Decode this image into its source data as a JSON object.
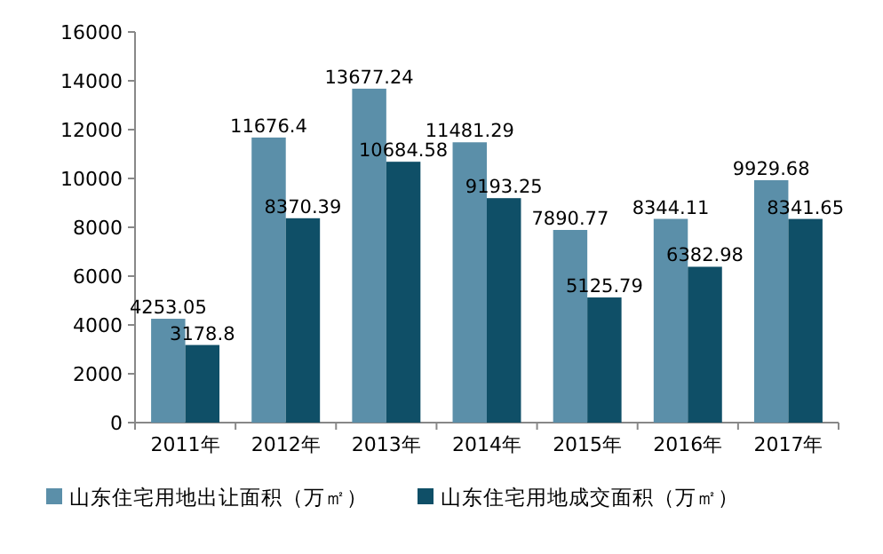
{
  "chart_data": {
    "type": "bar",
    "categories": [
      "2011年",
      "2012年",
      "2013年",
      "2014年",
      "2015年",
      "2016年",
      "2017年"
    ],
    "series": [
      {
        "name": "山东住宅用地出让面积（万㎡）",
        "color": "#5b8fa9",
        "values": [
          4253.05,
          11676.4,
          13677.24,
          11481.29,
          7890.77,
          8344.11,
          9929.68
        ]
      },
      {
        "name": "山东住宅用地成交面积（万㎡）",
        "color": "#0f4f67",
        "values": [
          3178.8,
          8370.39,
          10684.58,
          9193.25,
          5125.79,
          6382.98,
          8341.65
        ]
      }
    ],
    "ylim": [
      0,
      16000
    ],
    "yticks": [
      0,
      2000,
      4000,
      6000,
      8000,
      10000,
      12000,
      14000,
      16000
    ],
    "data_labels": true,
    "grid": false,
    "legend": "bottom"
  }
}
